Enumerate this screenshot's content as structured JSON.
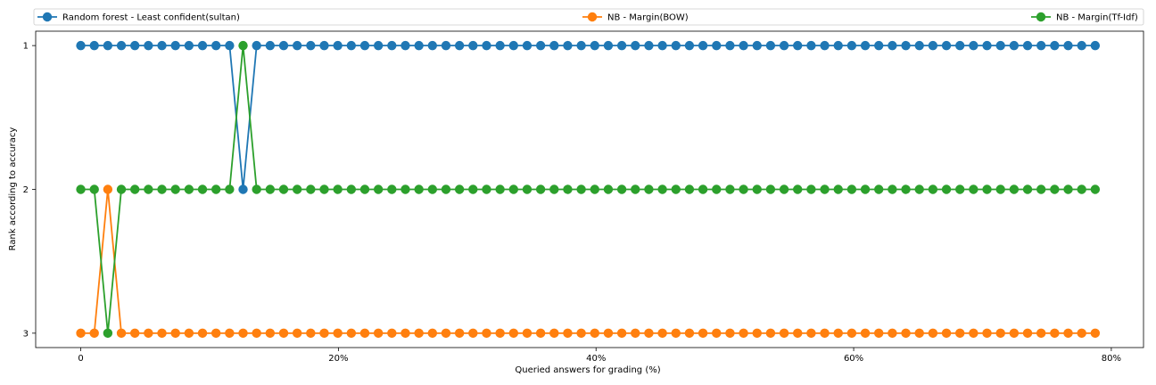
{
  "chart_data": {
    "type": "line",
    "xlabel": "Queried answers for grading (%)",
    "ylabel": "Rank according to accuracy",
    "xlim": [
      -3.5,
      82.5
    ],
    "ylim": [
      3.1,
      0.9
    ],
    "x_ticks": [
      0,
      20,
      40,
      60,
      80
    ],
    "x_tick_labels": [
      "0",
      "20%",
      "40%",
      "60%",
      "80%"
    ],
    "y_ticks": [
      1,
      2,
      3
    ],
    "y_tick_labels": [
      "1",
      "2",
      "3"
    ],
    "x": [
      0.0,
      1.05,
      2.1,
      3.15,
      4.2,
      5.25,
      6.3,
      7.35,
      8.4,
      9.45,
      10.5,
      11.55,
      12.6,
      13.65,
      14.7,
      15.75,
      16.8,
      17.85,
      18.9,
      19.95,
      21.0,
      22.05,
      23.1,
      24.15,
      25.2,
      26.25,
      27.3,
      28.35,
      29.4,
      30.45,
      31.5,
      32.55,
      33.6,
      34.65,
      35.7,
      36.75,
      37.8,
      38.85,
      39.9,
      40.95,
      42.0,
      43.05,
      44.1,
      45.15,
      46.2,
      47.25,
      48.3,
      49.35,
      50.4,
      51.45,
      52.5,
      53.55,
      54.6,
      55.65,
      56.7,
      57.75,
      58.8,
      59.85,
      60.9,
      61.95,
      63.0,
      64.05,
      65.1,
      66.15,
      67.2,
      68.25,
      69.3,
      70.35,
      71.4,
      72.45,
      73.5,
      74.55,
      75.6,
      76.65,
      77.7,
      78.75
    ],
    "series": [
      {
        "name": "Random forest - Least confident(sultan)",
        "color": "#1f77b4",
        "values": [
          1,
          1,
          1,
          1,
          1,
          1,
          1,
          1,
          1,
          1,
          1,
          1,
          2,
          1,
          1,
          1,
          1,
          1,
          1,
          1,
          1,
          1,
          1,
          1,
          1,
          1,
          1,
          1,
          1,
          1,
          1,
          1,
          1,
          1,
          1,
          1,
          1,
          1,
          1,
          1,
          1,
          1,
          1,
          1,
          1,
          1,
          1,
          1,
          1,
          1,
          1,
          1,
          1,
          1,
          1,
          1,
          1,
          1,
          1,
          1,
          1,
          1,
          1,
          1,
          1,
          1,
          1,
          1,
          1,
          1,
          1,
          1,
          1,
          1,
          1,
          1
        ]
      },
      {
        "name": "NB - Margin(BOW)",
        "color": "#ff7f0e",
        "values": [
          3,
          3,
          2,
          3,
          3,
          3,
          3,
          3,
          3,
          3,
          3,
          3,
          3,
          3,
          3,
          3,
          3,
          3,
          3,
          3,
          3,
          3,
          3,
          3,
          3,
          3,
          3,
          3,
          3,
          3,
          3,
          3,
          3,
          3,
          3,
          3,
          3,
          3,
          3,
          3,
          3,
          3,
          3,
          3,
          3,
          3,
          3,
          3,
          3,
          3,
          3,
          3,
          3,
          3,
          3,
          3,
          3,
          3,
          3,
          3,
          3,
          3,
          3,
          3,
          3,
          3,
          3,
          3,
          3,
          3,
          3,
          3,
          3,
          3,
          3,
          3
        ]
      },
      {
        "name": "NB - Margin(Tf-Idf)",
        "color": "#2ca02c",
        "values": [
          2,
          2,
          3,
          2,
          2,
          2,
          2,
          2,
          2,
          2,
          2,
          2,
          1,
          2,
          2,
          2,
          2,
          2,
          2,
          2,
          2,
          2,
          2,
          2,
          2,
          2,
          2,
          2,
          2,
          2,
          2,
          2,
          2,
          2,
          2,
          2,
          2,
          2,
          2,
          2,
          2,
          2,
          2,
          2,
          2,
          2,
          2,
          2,
          2,
          2,
          2,
          2,
          2,
          2,
          2,
          2,
          2,
          2,
          2,
          2,
          2,
          2,
          2,
          2,
          2,
          2,
          2,
          2,
          2,
          2,
          2,
          2,
          2,
          2,
          2,
          2
        ]
      }
    ],
    "legend_position": "top",
    "grid": false
  }
}
